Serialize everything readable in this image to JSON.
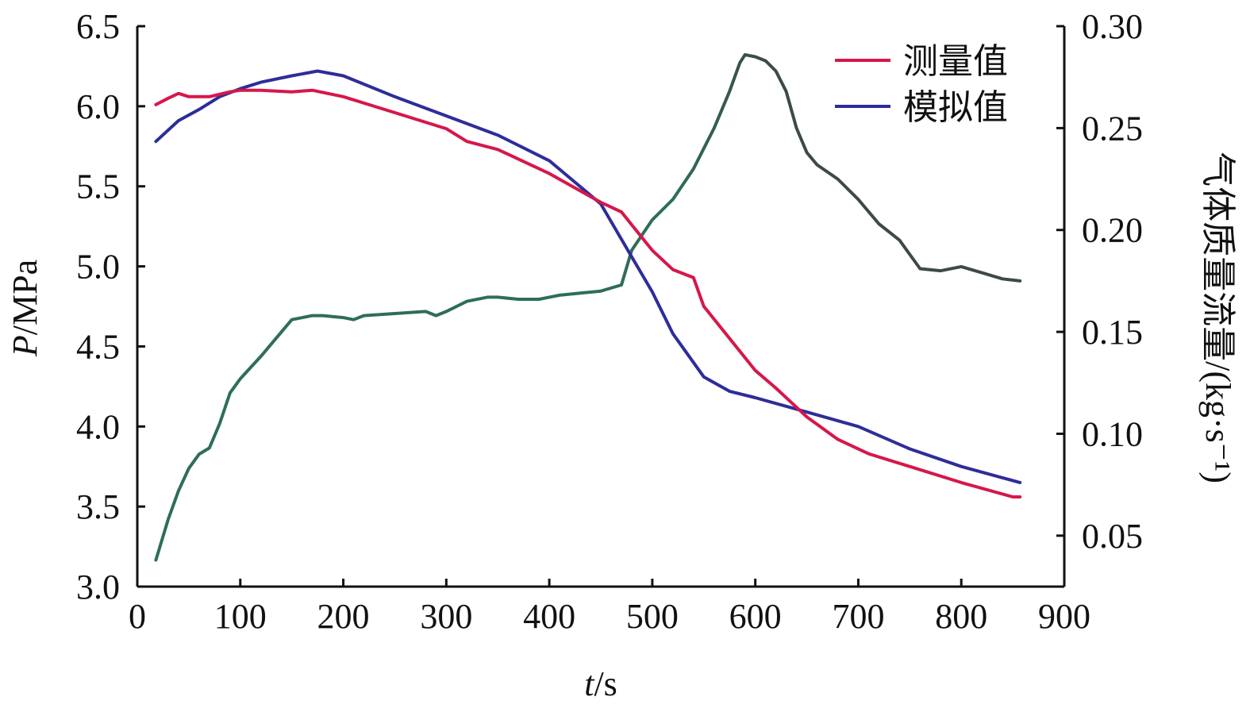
{
  "chart_data": {
    "type": "line",
    "x_label": {
      "italic": "t",
      "rest": "/s"
    },
    "y_left_label": {
      "italic": "P",
      "rest": "/MPa"
    },
    "y_right_label": "气体质量流量/(kg·s⁻¹)",
    "x_ticks": [
      "0",
      "100",
      "200",
      "300",
      "400",
      "500",
      "600",
      "700",
      "800",
      "900"
    ],
    "y_left_ticks": [
      "3.0",
      "3.5",
      "4.0",
      "4.5",
      "5.0",
      "5.5",
      "6.0",
      "6.5"
    ],
    "y_right_ticks": [
      "0.05",
      "0.10",
      "0.15",
      "0.20",
      "0.25",
      "0.30"
    ],
    "xlim": [
      0,
      900
    ],
    "y_left_lim": [
      3.0,
      6.5
    ],
    "y_right_lim": [
      0.025,
      0.3
    ],
    "legend_position": "top-right",
    "colors": {
      "measured": "#d6174a",
      "simulated": "#2d2d9a",
      "flow_mid": "#2e6e58",
      "flow_dark": "#3d4a46",
      "right_axis_label": "#2e7d66"
    },
    "series": [
      {
        "name": "测量值",
        "axis": "left",
        "color": "#d6174a",
        "x": [
          18,
          30,
          40,
          50,
          70,
          90,
          100,
          120,
          150,
          170,
          200,
          250,
          300,
          320,
          350,
          400,
          450,
          470,
          480,
          500,
          520,
          540,
          550,
          600,
          620,
          650,
          680,
          710,
          750,
          800,
          850,
          857
        ],
        "y": [
          6.01,
          6.05,
          6.08,
          6.06,
          6.06,
          6.09,
          6.1,
          6.1,
          6.09,
          6.1,
          6.06,
          5.96,
          5.86,
          5.78,
          5.73,
          5.58,
          5.4,
          5.34,
          5.26,
          5.1,
          4.98,
          4.93,
          4.75,
          4.35,
          4.24,
          4.06,
          3.92,
          3.83,
          3.75,
          3.65,
          3.56,
          3.56
        ]
      },
      {
        "name": "模拟值",
        "axis": "left",
        "color": "#2d2d9a",
        "x": [
          18,
          40,
          60,
          80,
          100,
          120,
          150,
          175,
          200,
          250,
          300,
          350,
          400,
          450,
          480,
          500,
          520,
          550,
          575,
          600,
          650,
          700,
          750,
          800,
          857
        ],
        "y": [
          5.78,
          5.91,
          5.98,
          6.06,
          6.11,
          6.15,
          6.19,
          6.22,
          6.19,
          6.06,
          5.94,
          5.82,
          5.66,
          5.39,
          5.06,
          4.84,
          4.58,
          4.31,
          4.22,
          4.18,
          4.09,
          4.0,
          3.86,
          3.75,
          3.65
        ]
      },
      {
        "name": "",
        "axis": "right",
        "x": [
          18,
          30,
          40,
          50,
          60,
          70,
          80,
          90,
          100,
          120,
          140,
          150,
          170,
          180,
          200,
          210,
          220,
          250,
          280,
          290,
          300,
          320,
          340,
          350,
          370,
          390,
          400,
          410,
          430,
          450,
          470,
          480,
          500,
          520,
          540,
          560,
          575,
          585,
          590,
          600,
          610,
          620,
          630,
          640,
          650,
          660,
          680,
          700,
          720,
          740,
          750,
          760,
          780,
          800,
          820,
          840,
          857
        ],
        "y": [
          0.038,
          0.058,
          0.072,
          0.083,
          0.09,
          0.093,
          0.105,
          0.12,
          0.127,
          0.138,
          0.15,
          0.156,
          0.158,
          0.158,
          0.157,
          0.156,
          0.158,
          0.159,
          0.16,
          0.158,
          0.16,
          0.165,
          0.167,
          0.167,
          0.166,
          0.166,
          0.167,
          0.168,
          0.169,
          0.17,
          0.173,
          0.19,
          0.205,
          0.215,
          0.23,
          0.25,
          0.268,
          0.282,
          0.286,
          0.285,
          0.283,
          0.278,
          0.268,
          0.25,
          0.238,
          0.232,
          0.225,
          0.215,
          0.203,
          0.195,
          0.188,
          0.181,
          0.18,
          0.182,
          0.179,
          0.176,
          0.175
        ]
      }
    ]
  }
}
